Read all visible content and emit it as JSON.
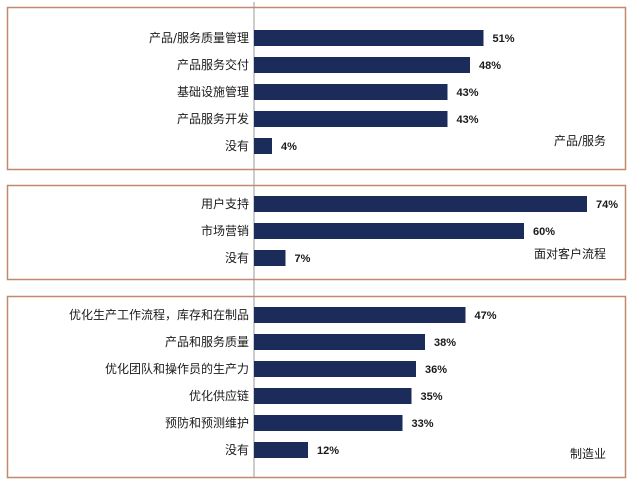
{
  "chart_data": [
    {
      "type": "bar",
      "orientation": "horizontal",
      "group_label": "产品/服务",
      "categories": [
        "产品/服务质量管理",
        "产品服务交付",
        "基础设施管理",
        "产品服务开发",
        "没有"
      ],
      "values": [
        51,
        48,
        43,
        43,
        4
      ],
      "value_labels": [
        "51%",
        "48%",
        "43%",
        "43%",
        "4%"
      ],
      "color": "#1b2c5a"
    },
    {
      "type": "bar",
      "orientation": "horizontal",
      "group_label": "面对客户流程",
      "categories": [
        "用户支持",
        "市场营销",
        "没有"
      ],
      "values": [
        74,
        60,
        7
      ],
      "value_labels": [
        "74%",
        "60%",
        "7%"
      ],
      "color": "#1b2c5a"
    },
    {
      "type": "bar",
      "orientation": "horizontal",
      "group_label": "制造业",
      "categories": [
        "优化生产工作流程，库存和在制品",
        "产品和服务质量",
        "优化团队和操作员的生产力",
        "优化供应链",
        "预防和预测维护",
        "没有"
      ],
      "values": [
        47,
        38,
        36,
        35,
        33,
        12
      ],
      "value_labels": [
        "47%",
        "38%",
        "36%",
        "35%",
        "33%",
        "12%"
      ],
      "color": "#1b2c5a"
    }
  ],
  "colors": {
    "bar": "#1b2c5a",
    "panel_border": "#c08a6a",
    "axis": "#999999"
  }
}
